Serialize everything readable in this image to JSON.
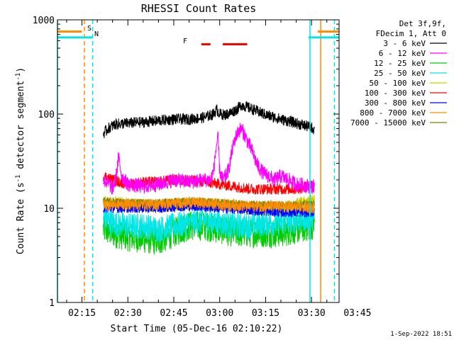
{
  "chart_data": {
    "type": "line",
    "title": "RHESSI Count Rates",
    "xlabel": "Start Time (05-Dec-16 02:10:22)",
    "ylabel": "Count Rate (s⁻¹ detector segment⁻¹)",
    "ylabel_main": "Count Rate (s",
    "ylabel_mid": " detector segment",
    "ylabel_end": ")",
    "ylabel_sup": "-1",
    "y_scale": "log",
    "ylim": [
      1,
      1000
    ],
    "xlim_minutes": [
      7,
      99
    ],
    "x_ticks": [
      {
        "label": "02:15",
        "min": 15
      },
      {
        "label": "02:30",
        "min": 30
      },
      {
        "label": "02:45",
        "min": 45
      },
      {
        "label": "03:00",
        "min": 60
      },
      {
        "label": "03:15",
        "min": 75
      },
      {
        "label": "03:30",
        "min": 90
      },
      {
        "label": "03:45",
        "min": 105
      }
    ],
    "y_ticks": [
      "1",
      "10",
      "100",
      "1000"
    ],
    "legend_header": [
      "Det 3f,9f,",
      "FDecim 1, Att 0"
    ],
    "legend_position": "right",
    "series": [
      {
        "name": "3 - 6 keV",
        "color": "#000000",
        "points": [
          [
            22,
            62
          ],
          [
            24,
            72
          ],
          [
            26,
            78
          ],
          [
            30,
            80
          ],
          [
            35,
            82
          ],
          [
            40,
            85
          ],
          [
            45,
            88
          ],
          [
            50,
            88
          ],
          [
            55,
            92
          ],
          [
            58,
            100
          ],
          [
            59,
            112
          ],
          [
            60,
            100
          ],
          [
            62,
            98
          ],
          [
            64,
            105
          ],
          [
            66,
            115
          ],
          [
            67,
            125
          ],
          [
            68,
            122
          ],
          [
            70,
            115
          ],
          [
            72,
            108
          ],
          [
            75,
            98
          ],
          [
            80,
            88
          ],
          [
            85,
            80
          ],
          [
            88,
            75
          ],
          [
            90,
            72
          ],
          [
            91,
            68
          ]
        ],
        "noise": 0.06
      },
      {
        "name": "6 - 12 keV",
        "color": "#ff00ff",
        "points": [
          [
            22,
            20
          ],
          [
            24,
            18
          ],
          [
            25,
            16
          ],
          [
            26,
            20
          ],
          [
            27,
            35
          ],
          [
            28,
            22
          ],
          [
            30,
            18
          ],
          [
            35,
            17
          ],
          [
            40,
            18
          ],
          [
            45,
            20
          ],
          [
            50,
            19
          ],
          [
            55,
            20
          ],
          [
            57,
            20
          ],
          [
            58,
            25
          ],
          [
            59,
            48
          ],
          [
            59.5,
            55
          ],
          [
            60,
            25
          ],
          [
            61,
            20
          ],
          [
            62,
            22
          ],
          [
            63,
            26
          ],
          [
            64,
            40
          ],
          [
            65,
            55
          ],
          [
            66,
            65
          ],
          [
            67,
            70
          ],
          [
            68,
            62
          ],
          [
            69,
            52
          ],
          [
            70,
            45
          ],
          [
            71,
            38
          ],
          [
            72,
            30
          ],
          [
            74,
            24
          ],
          [
            78,
            20
          ],
          [
            80,
            22
          ],
          [
            85,
            18
          ],
          [
            90,
            17
          ],
          [
            91,
            17
          ]
        ],
        "noise": 0.08
      },
      {
        "name": "12 - 25 keV",
        "color": "#00cc00",
        "points": [
          [
            22,
            6
          ],
          [
            25,
            5.5
          ],
          [
            30,
            5
          ],
          [
            35,
            4.8
          ],
          [
            40,
            4.5
          ],
          [
            45,
            5.5
          ],
          [
            50,
            6.5
          ],
          [
            55,
            6.5
          ],
          [
            60,
            6
          ],
          [
            65,
            5.5
          ],
          [
            70,
            5.5
          ],
          [
            75,
            5.5
          ],
          [
            80,
            5.5
          ],
          [
            85,
            6
          ],
          [
            90,
            6.5
          ],
          [
            91,
            7
          ]
        ],
        "noise": 0.16
      },
      {
        "name": "25 - 50 keV",
        "color": "#00e5e5",
        "points": [
          [
            22,
            8
          ],
          [
            25,
            7
          ],
          [
            30,
            6.5
          ],
          [
            35,
            6.5
          ],
          [
            40,
            6
          ],
          [
            45,
            6.5
          ],
          [
            50,
            7
          ],
          [
            55,
            7.5
          ],
          [
            60,
            7
          ],
          [
            65,
            6.5
          ],
          [
            70,
            6.5
          ],
          [
            75,
            7
          ],
          [
            80,
            7
          ],
          [
            85,
            7.5
          ],
          [
            90,
            8
          ],
          [
            91,
            8
          ]
        ],
        "noise": 0.14
      },
      {
        "name": "50 - 100 keV",
        "color": "#cccc00",
        "points": [
          [
            22,
            12
          ],
          [
            30,
            11
          ],
          [
            40,
            10.5
          ],
          [
            50,
            11
          ],
          [
            60,
            11
          ],
          [
            70,
            10
          ],
          [
            80,
            10
          ],
          [
            90,
            12
          ],
          [
            91,
            13
          ]
        ],
        "noise": 0.07
      },
      {
        "name": "100 - 300 keV",
        "color": "#ff0000",
        "points": [
          [
            22,
            22
          ],
          [
            25,
            20
          ],
          [
            30,
            18
          ],
          [
            35,
            19
          ],
          [
            40,
            19
          ],
          [
            45,
            20
          ],
          [
            50,
            20
          ],
          [
            55,
            19
          ],
          [
            60,
            18
          ],
          [
            65,
            17
          ],
          [
            70,
            16
          ],
          [
            75,
            16
          ],
          [
            80,
            16
          ],
          [
            85,
            16
          ],
          [
            88,
            17
          ],
          [
            91,
            18
          ]
        ],
        "noise": 0.06
      },
      {
        "name": "300 - 800 keV",
        "color": "#0000ff",
        "points": [
          [
            22,
            10
          ],
          [
            30,
            10
          ],
          [
            40,
            10
          ],
          [
            50,
            10.5
          ],
          [
            60,
            10
          ],
          [
            70,
            9.5
          ],
          [
            80,
            9
          ],
          [
            90,
            9
          ],
          [
            91,
            9
          ]
        ],
        "noise": 0.05
      },
      {
        "name": "800 - 7000 keV",
        "color": "#ff8c00",
        "points": [
          [
            22,
            11
          ],
          [
            30,
            11
          ],
          [
            40,
            11
          ],
          [
            50,
            11.5
          ],
          [
            60,
            11
          ],
          [
            70,
            10.5
          ],
          [
            80,
            10.5
          ],
          [
            90,
            10
          ],
          [
            91,
            10
          ]
        ],
        "noise": 0.06
      },
      {
        "name": "7000 - 15000 keV",
        "color": "#808000",
        "points": [
          [
            22,
            12
          ],
          [
            30,
            11.5
          ],
          [
            40,
            11.5
          ],
          [
            50,
            12
          ],
          [
            60,
            11.5
          ],
          [
            70,
            11
          ],
          [
            80,
            11
          ],
          [
            90,
            11
          ],
          [
            91,
            11
          ]
        ],
        "noise": 0.04
      }
    ],
    "markers": {
      "S": {
        "label": "S",
        "color": "#ff8c00"
      },
      "N": {
        "label": "N",
        "color": "#00e5e5"
      },
      "F": {
        "label": "F",
        "color": "#ff0000"
      }
    },
    "bars": [
      {
        "series": "S",
        "x0": 7,
        "x1": 15,
        "y": 750
      },
      {
        "series": "S",
        "x0": 92,
        "x1": 99,
        "y": 750
      },
      {
        "series": "N",
        "x0": 7,
        "x1": 18.5,
        "y": 650
      },
      {
        "series": "N",
        "x0": 89,
        "x1": 99,
        "y": 650
      },
      {
        "series": "F",
        "x0": 54,
        "x1": 57,
        "y": 550
      },
      {
        "series": "F",
        "x0": 61,
        "x1": 69,
        "y": 550
      }
    ],
    "vlines": [
      {
        "x": 7,
        "color": "#00e5e5",
        "dash": false
      },
      {
        "x": 15.8,
        "color": "#ff8c00",
        "dash": true
      },
      {
        "x": 18.5,
        "color": "#00e5e5",
        "dash": true
      },
      {
        "x": 89.5,
        "color": "#00e5e5",
        "dash": false
      },
      {
        "x": 93,
        "color": "#ff8c00",
        "dash": false
      },
      {
        "x": 97.5,
        "color": "#00e5e5",
        "dash": true
      }
    ],
    "timestamp": "1-Sep-2022 18:51"
  }
}
